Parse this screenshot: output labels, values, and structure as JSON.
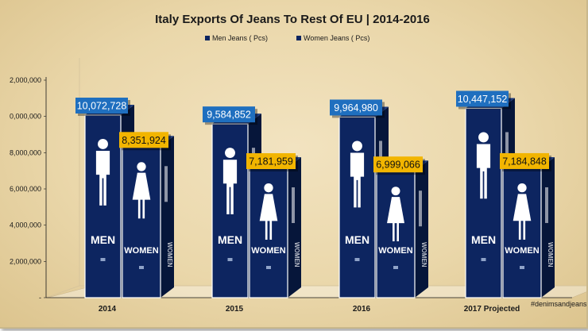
{
  "chart_data": {
    "type": "bar",
    "title": "Italy Exports Of Jeans To Rest Of EU | 2014-2016",
    "categories": [
      "2014",
      "2015",
      "2016",
      "2017 Projected"
    ],
    "series": [
      {
        "name": "Men Jeans ( Pcs)",
        "values": [
          10072728,
          9584852,
          9964980,
          10447152
        ],
        "labels": [
          "10,072,728",
          "9,584,852",
          "9,964,980",
          "10,447,152"
        ]
      },
      {
        "name": "Women Jeans ( Pcs)",
        "values": [
          8351924,
          7181959,
          6999066,
          7184848
        ],
        "labels": [
          "8,351,924",
          "7,181,959",
          "6,999,066",
          "7,184,848"
        ]
      }
    ],
    "yticks": [
      "2,000,000",
      "0,000,000",
      "8,000,000",
      "6,000,000",
      "4,000,000",
      "2,000,000",
      "-"
    ],
    "ylim": [
      0,
      12000000
    ],
    "grid": false,
    "legend_position": "top",
    "sign_text": {
      "men": "MEN",
      "women": "WOMEN"
    },
    "colors": {
      "men_bar": "#0d2560",
      "men_label": "#1f6fbf",
      "women_label": "#f2b500",
      "sign_icon": "#ffffff"
    },
    "annotation": "#denimsandjeans"
  }
}
